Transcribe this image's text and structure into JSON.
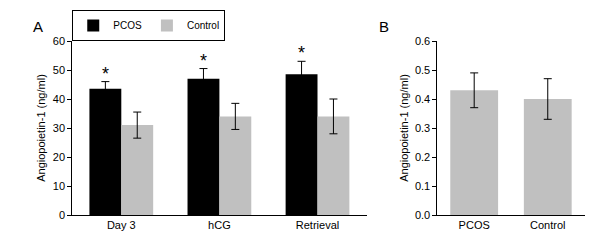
{
  "chart_data": [
    {
      "type": "bar",
      "title": "A",
      "categories": [
        "Day 3",
        "hCG",
        "Retrieval"
      ],
      "series": [
        {
          "name": "PCOS",
          "color": "#000000",
          "values": [
            43.5,
            47,
            48.5
          ],
          "errors": [
            2.5,
            3.5,
            4.5
          ]
        },
        {
          "name": "Control",
          "color": "#c0c0c0",
          "values": [
            31,
            34,
            34
          ],
          "errors": [
            4.5,
            4.5,
            6
          ]
        }
      ],
      "y_label": "Angiopoietin-1 (ng/ml)",
      "ylim": [
        0,
        60
      ],
      "yticks": [
        0,
        10,
        20,
        30,
        40,
        50,
        60
      ],
      "legend": "top left",
      "annotations": [
        {
          "text": "*",
          "category": "Day 3",
          "series": "PCOS"
        },
        {
          "text": "*",
          "category": "hCG",
          "series": "PCOS"
        },
        {
          "text": "*",
          "category": "Retrieval",
          "series": "PCOS"
        }
      ]
    },
    {
      "type": "bar",
      "title": "B",
      "categories": [
        "PCOS",
        "Control"
      ],
      "values": [
        0.43,
        0.4
      ],
      "errors": [
        0.06,
        0.07
      ],
      "colors": [
        "#c0c0c0",
        "#c0c0c0"
      ],
      "y_label": "Angiopoietin-1 (ng/ml)",
      "ylim": [
        0,
        0.6
      ],
      "yticks": [
        {
          "value": 0,
          "label": "0.0"
        },
        0.1,
        0.2,
        0.3,
        0.4,
        0.5,
        0.6
      ]
    }
  ]
}
